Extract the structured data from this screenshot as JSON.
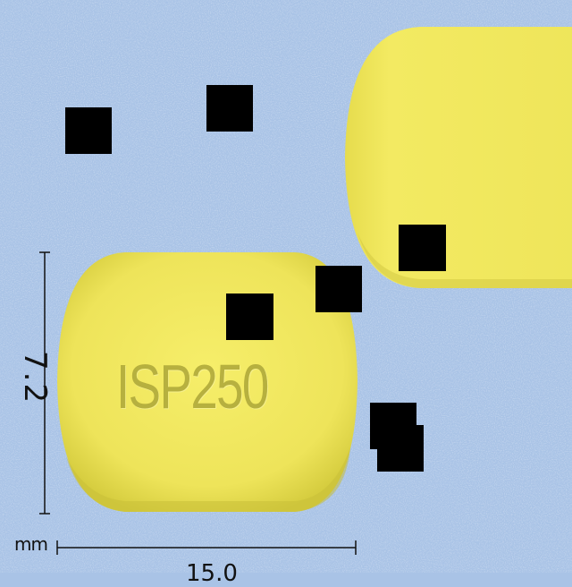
{
  "measurements": {
    "height": "7.2",
    "width": "15.0",
    "unit": "mm"
  },
  "tablet": {
    "imprint": "ISP250",
    "color": "#f1e85a",
    "shadow_color": "#c9c23a"
  },
  "background_color": "#a9c3e6"
}
